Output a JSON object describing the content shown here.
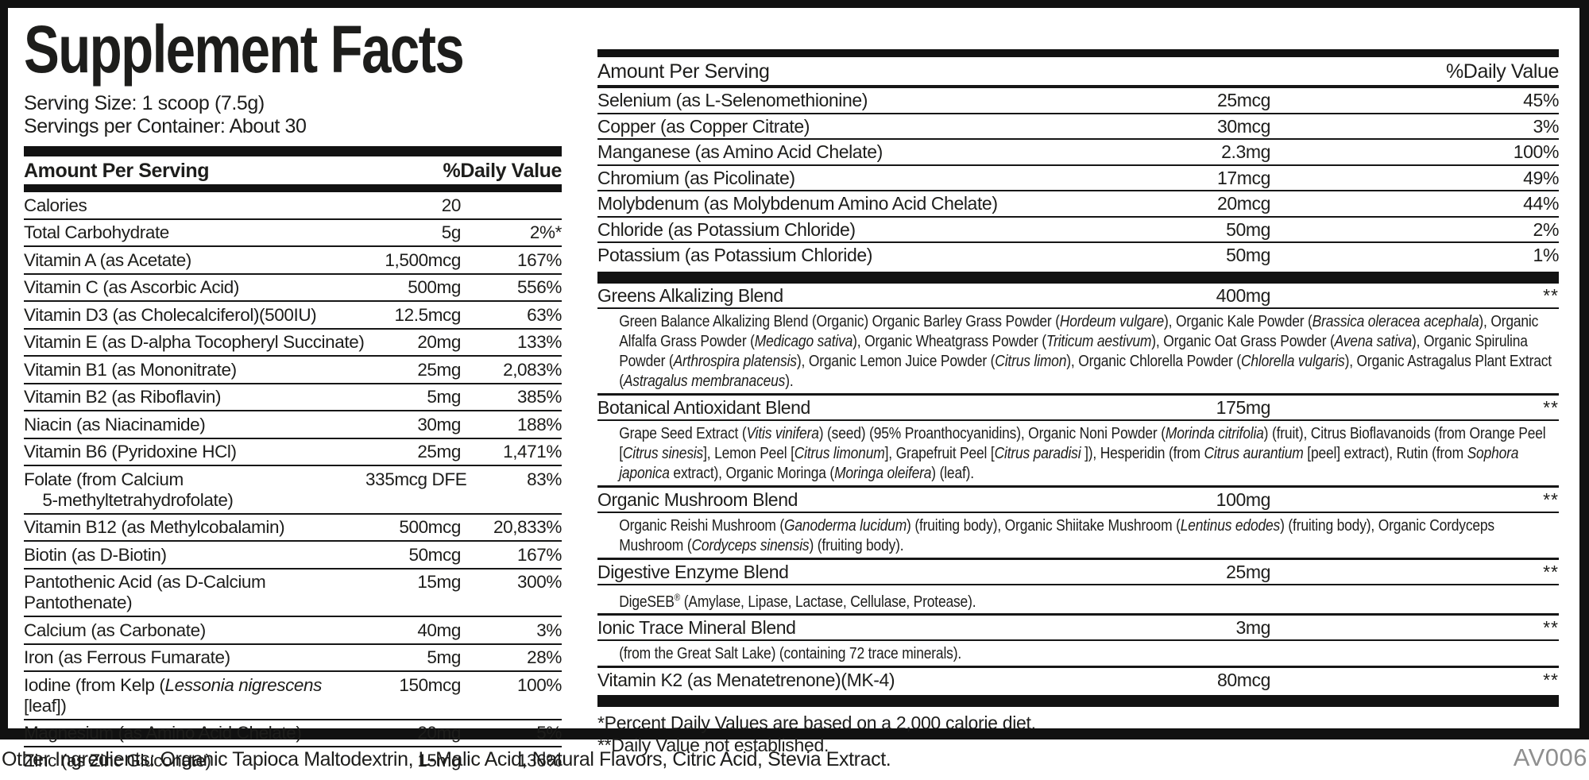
{
  "label": {
    "title": "Supplement Facts",
    "serving_size": "Serving Size: 1 scoop (7.5g)",
    "servings_per_container": "Servings per Container: About 30",
    "footnotes": [
      "*Percent Daily Values are based on a 2,000 calorie diet.",
      "**Daily Value not established."
    ],
    "other_ingredients": "Other Ingredients: Organic Tapioca Maltodextrin, L-Malic Acid, Natural Flavors, Citric Acid, Stevia Extract.",
    "product_code": "AV006"
  },
  "left_table": {
    "header": {
      "amount": "Amount Per Serving",
      "dv": "%Daily Value"
    },
    "rows": [
      {
        "name_html": "Calories",
        "amount": "20",
        "dv": ""
      },
      {
        "name_html": "Total Carbohydrate",
        "amount": "5g",
        "dv": "2%*"
      },
      {
        "name_html": "Vitamin A (as Acetate)",
        "amount": "1,500mcg",
        "dv": "167%"
      },
      {
        "name_html": "Vitamin C (as Ascorbic Acid)",
        "amount": "500mg",
        "dv": "556%"
      },
      {
        "name_html": "Vitamin D3 (as Cholecalciferol)(500IU)",
        "amount": "12.5mcg",
        "dv": "63%"
      },
      {
        "name_html": "Vitamin E (as D-alpha Tocopheryl Succinate)",
        "amount": "20mg",
        "dv": "133%"
      },
      {
        "name_html": "Vitamin B1 (as Mononitrate)",
        "amount": "25mg",
        "dv": "2,083%"
      },
      {
        "name_html": "Vitamin B2 (as Riboflavin)",
        "amount": "5mg",
        "dv": "385%"
      },
      {
        "name_html": "Niacin (as Niacinamide)",
        "amount": "30mg",
        "dv": "188%"
      },
      {
        "name_html": "Vitamin B6 (Pyridoxine HCl)",
        "amount": "25mg",
        "dv": "1,471%"
      },
      {
        "name_html": "Folate (from Calcium<br>&nbsp;&nbsp;&nbsp;&nbsp;5-methyltetrahydrofolate)",
        "amount": "335mcg DFE",
        "dv": "83%"
      },
      {
        "name_html": "Vitamin B12 (as Methylcobalamin)",
        "amount": "500mcg",
        "dv": "20,833%"
      },
      {
        "name_html": "Biotin (as D-Biotin)",
        "amount": "50mcg",
        "dv": "167%"
      },
      {
        "name_html": "Pantothenic Acid (as D-Calcium Pantothenate)",
        "amount": "15mg",
        "dv": "300%"
      },
      {
        "name_html": "Calcium (as Carbonate)",
        "amount": "40mg",
        "dv": "3%"
      },
      {
        "name_html": "Iron (as Ferrous Fumarate)",
        "amount": "5mg",
        "dv": "28%"
      },
      {
        "name_html": "Iodine (from Kelp (<i>Lessonia nigrescens</i> [leaf])",
        "amount": "150mcg",
        "dv": "100%"
      },
      {
        "name_html": "Magnesium (as Amino Acid Chelate)",
        "amount": "20mg",
        "dv": "5%"
      },
      {
        "name_html": "Zinc (as Zinc Gluconate)",
        "amount": "15mg",
        "dv": "136%"
      }
    ]
  },
  "right_table": {
    "header": {
      "amount": "Amount Per Serving",
      "dv": "%Daily Value"
    },
    "rows": [
      {
        "name_html": "Selenium (as L-Selenomethionine)",
        "amount": "25mcg",
        "dv": "45%"
      },
      {
        "name_html": "Copper (as Copper Citrate)",
        "amount": "30mcg",
        "dv": "3%"
      },
      {
        "name_html": "Manganese (as Amino Acid Chelate)",
        "amount": "2.3mg",
        "dv": "100%"
      },
      {
        "name_html": "Chromium (as Picolinate)",
        "amount": "17mcg",
        "dv": "49%"
      },
      {
        "name_html": "Molybdenum (as Molybdenum Amino Acid Chelate)",
        "amount": "20mcg",
        "dv": "44%"
      },
      {
        "name_html": "Chloride (as Potassium Chloride)",
        "amount": "50mg",
        "dv": "2%"
      },
      {
        "name_html": "Potassium (as Potassium Chloride)",
        "amount": "50mg",
        "dv": "1%"
      }
    ],
    "blends": [
      {
        "name_html": "Greens Alkalizing Blend",
        "amount": "400mg",
        "dv": "**",
        "description_html": "Green Balance Alkalizing Blend (Organic) Organic Barley Grass Powder (<i>Hordeum vulgare</i>), Organic Kale Powder (<i>Brassica oleracea acephala</i>), Organic Alfalfa Grass Powder (<i>Medicago sativa</i>), Organic Wheatgrass Powder (<i>Triticum aestivum</i>), Organic Oat Grass Powder (<i>Avena sativa</i>), Organic Spirulina Powder (<i>Arthrospira platensis</i>), Organic Lemon Juice Powder (<i>Citrus limon</i>), Organic Chlorella Powder (<i>Chlorella vulgaris</i>), Organic Astragalus Plant Extract (<i>Astragalus membranaceus</i>)."
      },
      {
        "name_html": "Botanical Antioxidant Blend",
        "amount": "175mg",
        "dv": "**",
        "description_html": "Grape Seed Extract (<i>Vitis vinifera</i>) (seed) (95% Proanthocyanidins), Organic Noni Powder (<i>Morinda citrifolia</i>) (fruit), Citrus Bioflavanoids (from Orange Peel [<i>Citrus sinesis</i>], Lemon Peel [<i>Citrus limonum</i>], Grapefruit Peel [<i>Citrus paradisi</i> ]), Hesperidin (from <i>Citrus aurantium</i> [peel] extract), Rutin (from <i>Sophora japonica</i> extract), Organic Moringa (<i>Moringa oleifera</i>) (leaf)."
      },
      {
        "name_html": "Organic Mushroom Blend",
        "amount": "100mg",
        "dv": "**",
        "description_html": "Organic Reishi Mushroom (<i>Ganoderma lucidum</i>) (fruiting body), Organic Shiitake Mushroom (<i>Lentinus edodes</i>) (fruiting body), Organic Cordyceps Mushroom (<i>Cordyceps sinensis</i>) (fruiting body)."
      },
      {
        "name_html": "Digestive Enzyme Blend",
        "amount": "25mg",
        "dv": "**",
        "description_html": "DigeSEB<sup>®</sup> (Amylase, Lipase, Lactase, Cellulase, Protease)."
      },
      {
        "name_html": "Ionic Trace Mineral Blend",
        "amount": "3mg",
        "dv": "**",
        "description_html": "(from the Great Salt Lake) (containing 72 trace minerals)."
      },
      {
        "name_html": "Vitamin K2 (as Menatetrenone)(MK-4)",
        "amount": "80mcg",
        "dv": "**",
        "description_html": ""
      }
    ]
  }
}
